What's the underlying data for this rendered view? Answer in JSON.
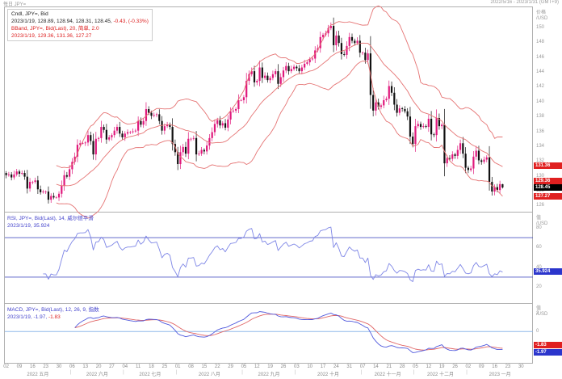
{
  "window": {
    "title_left": "每日 JPY=",
    "title_right": "2022/5/16 - 2023/1/31 (GMT+9)"
  },
  "main_pane": {
    "legend_line1": "Cndl, JPY=, Bid",
    "legend_line2_black": "2023/1/19, 128.89, 128.94, 128.31, 128.45,",
    "legend_line2_red": " -0.43, (-0.33%)",
    "legend_line3": "BBand, JPY=, Bid(Last), 20, 简单, 2.0",
    "legend_line4": "2023/1/19, 129.36, 131.36, 127.27",
    "axis_header_line1": "价格",
    "axis_header_line2": "/USD",
    "ticks": [
      150,
      148,
      146,
      144,
      142,
      140,
      138,
      136,
      134,
      132,
      130,
      128,
      126
    ],
    "badges": {
      "bb_upper": "131.36",
      "bb_mid": "129.36",
      "last_price": "128.45",
      "bb_lower": "127.27"
    }
  },
  "rsi_pane": {
    "legend_line1": "RSI, JPY=, Bid(Last), 14, 威尔德平滑",
    "legend_line2": "2023/1/19, 35.924",
    "axis_header_line1": "值",
    "axis_header_line2": "/USD",
    "ticks": [
      80,
      60,
      40,
      20
    ],
    "badge_value": "35.924"
  },
  "macd_pane": {
    "legend_line1": "MACD, JPY=, Bid(Last), 12, 26, 9, 指数",
    "legend_line2_blue": "2023/1/19, -1.97,",
    "legend_line2_red": " -1.83",
    "axis_header_line1": "值",
    "axis_header_line2": "/USD",
    "ticks": [
      2,
      0
    ],
    "badge_signal": "-1.83",
    "badge_macd": "-1.97"
  },
  "x_axis": {
    "weeks": [
      "02",
      "09",
      "16",
      "23",
      "30",
      "06",
      "13",
      "20",
      "27",
      "04",
      "11",
      "18",
      "25",
      "01",
      "08",
      "15",
      "22",
      "29",
      "05",
      "12",
      "19",
      "26",
      "03",
      "10",
      "17",
      "24",
      "31",
      "07",
      "14",
      "21",
      "28",
      "05",
      "12",
      "19",
      "26",
      "02",
      "09",
      "16",
      "23",
      "30"
    ],
    "months": [
      {
        "label": "2022 五月",
        "weeks": 5
      },
      {
        "label": "2022 六月",
        "weeks": 4
      },
      {
        "label": "2022 七月",
        "weeks": 4
      },
      {
        "label": "2022 八月",
        "weeks": 5
      },
      {
        "label": "2022 九月",
        "weeks": 4
      },
      {
        "label": "2022 十月",
        "weeks": 5
      },
      {
        "label": "2022 十一月",
        "weeks": 4
      },
      {
        "label": "2022 十二月",
        "weeks": 4
      },
      {
        "label": "2023 一月",
        "weeks": 5
      }
    ]
  },
  "chart_data": {
    "type": "candlestick",
    "symbol": "JPY=",
    "interval": "daily",
    "x_start": "2022-05-02",
    "x_axis_end": "2023-01-31",
    "price_axis_range": [
      125.4,
      152.6
    ],
    "closes": [
      130.1,
      130.2,
      129.8,
      130.2,
      130.6,
      130.3,
      130.4,
      129.9,
      128.3,
      129.2,
      129.2,
      129.4,
      128.2,
      127.8,
      127.9,
      127.9,
      126.8,
      127.3,
      127.1,
      127.1,
      127.6,
      128.7,
      130.1,
      129.9,
      130.9,
      131.9,
      132.6,
      134.2,
      134.4,
      134.4,
      134.5,
      135.5,
      134.7,
      132.9,
      135.0,
      135.1,
      136.6,
      136.2,
      134.9,
      135.2,
      135.5,
      136.1,
      136.6,
      135.7,
      135.2,
      135.7,
      135.9,
      135.9,
      136.0,
      136.1,
      137.4,
      136.9,
      137.4,
      139.0,
      138.5,
      138.1,
      138.2,
      138.3,
      137.4,
      136.1,
      136.7,
      136.9,
      136.6,
      134.3,
      133.2,
      131.6,
      133.2,
      133.9,
      133.0,
      135.0,
      135.0,
      135.1,
      132.9,
      133.0,
      133.5,
      133.3,
      134.1,
      135.1,
      135.9,
      137.0,
      137.5,
      136.8,
      137.1,
      136.5,
      137.6,
      138.7,
      138.8,
      139.0,
      140.2,
      140.2,
      140.6,
      142.8,
      143.7,
      144.1,
      142.6,
      142.8,
      144.6,
      143.2,
      143.5,
      142.9,
      143.2,
      143.7,
      144.1,
      142.4,
      143.3,
      144.2,
      144.8,
      144.1,
      144.4,
      144.7,
      144.5,
      144.1,
      144.6,
      145.1,
      145.3,
      145.7,
      145.8,
      146.9,
      147.2,
      148.7,
      149.0,
      149.2,
      149.9,
      150.2,
      147.6,
      148.9,
      147.9,
      146.4,
      146.3,
      147.5,
      148.7,
      148.2,
      147.9,
      148.2,
      146.6,
      146.6,
      145.6,
      146.5,
      140.9,
      138.8,
      139.9,
      139.3,
      139.5,
      140.2,
      140.4,
      142.1,
      141.2,
      139.6,
      138.5,
      139.1,
      139.0,
      138.7,
      138.0,
      135.3,
      134.3,
      136.7,
      137.0,
      136.6,
      136.7,
      136.6,
      137.7,
      135.6,
      135.5,
      137.8,
      136.7,
      136.9,
      131.7,
      132.4,
      132.3,
      132.9,
      132.7,
      133.5,
      134.4,
      133.0,
      131.1,
      130.8,
      131.0,
      132.6,
      133.4,
      132.1,
      131.9,
      132.2,
      132.5,
      129.2,
      127.9,
      128.5,
      128.1,
      128.9,
      128.45
    ],
    "last_ohlc": {
      "open": 128.89,
      "high": 128.94,
      "low": 128.31,
      "close": 128.45
    },
    "bollinger": {
      "period": 20,
      "stdev_mult": 2.0,
      "last_upper": 131.36,
      "last_mid": 129.36,
      "last_lower": 127.27
    },
    "rsi": {
      "period": 14,
      "smoothing": "威尔德平滑",
      "last": 35.924,
      "axis_range": [
        5,
        95
      ],
      "ref_lines": [
        70,
        30
      ]
    },
    "macd": {
      "fast": 12,
      "slow": 26,
      "signal": 9,
      "mode": "指数",
      "last_macd": -1.97,
      "last_signal": -1.83,
      "axis_range": [
        -3.4,
        3.0
      ]
    },
    "colors": {
      "up_candle": "#e0187c",
      "down_candle": "#111111",
      "bollinger_line": "#e57373",
      "rsi_line": "#7e86e6",
      "rsi_ref_line": "#4d55c4",
      "macd_line": "#5059dd",
      "signal_line": "#e06565",
      "zero_line": "#8fb9ea",
      "badge_red": "#e02020",
      "badge_black": "#000000",
      "badge_blue": "#2b35cc"
    }
  }
}
